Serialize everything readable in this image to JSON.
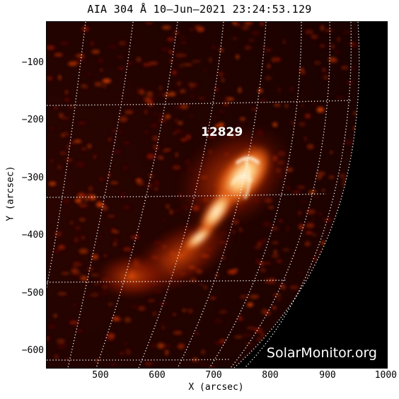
{
  "title": "AIA 304 Å 10–Jun–2021 23:24:53.129",
  "watermark": "SolarMonitor.org",
  "active_region_label": "12829",
  "x_axis": {
    "label": "X (arcsec)",
    "ticks": [
      "500",
      "600",
      "700",
      "800",
      "900",
      "1000"
    ]
  },
  "y_axis": {
    "label": "Y (arcsec)",
    "ticks": [
      "−100",
      "−200",
      "−300",
      "−400",
      "−500",
      "−600"
    ]
  },
  "colors": {
    "background": "#000000",
    "emission_dark": "#5a0800",
    "emission_mid": "#c83a00",
    "emission_bright": "#ffb060",
    "emission_peak": "#fff4d8",
    "grid": "#ffffff"
  }
}
